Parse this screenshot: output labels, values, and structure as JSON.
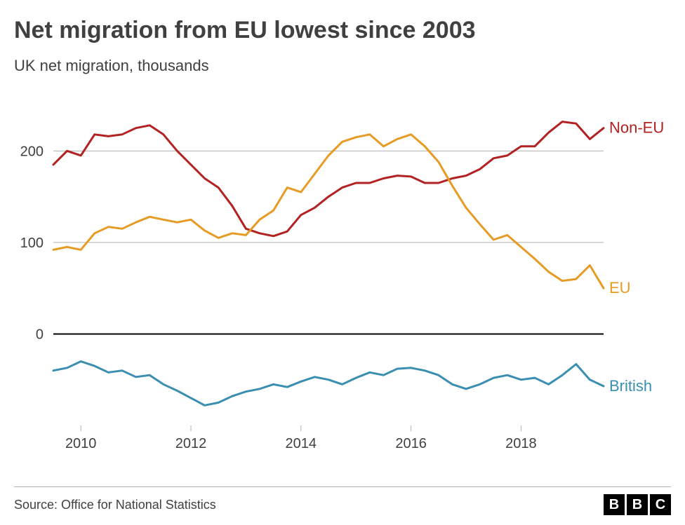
{
  "title": "Net migration from EU lowest since 2003",
  "subtitle": "UK net migration, thousands",
  "source": "Source: Office for National Statistics",
  "logo_letters": [
    "B",
    "B",
    "C"
  ],
  "chart": {
    "type": "line",
    "background_color": "#ffffff",
    "grid_color": "#b0b0b0",
    "zero_line_color": "#000000",
    "axis_text_color": "#404040",
    "line_width": 3,
    "x": {
      "min": 2009.5,
      "max": 2019.5,
      "tick_values": [
        2010,
        2012,
        2014,
        2016,
        2018
      ],
      "tick_labels": [
        "2010",
        "2012",
        "2014",
        "2016",
        "2018"
      ]
    },
    "y": {
      "min": -100,
      "max": 260,
      "tick_values": [
        0,
        100,
        200
      ],
      "tick_labels": [
        "0",
        "100",
        "200"
      ]
    },
    "series": [
      {
        "name": "Non-EU",
        "label": "Non-EU",
        "color": "#b22222",
        "points": [
          [
            2009.5,
            185
          ],
          [
            2009.75,
            200
          ],
          [
            2010,
            195
          ],
          [
            2010.25,
            218
          ],
          [
            2010.5,
            216
          ],
          [
            2010.75,
            218
          ],
          [
            2011,
            225
          ],
          [
            2011.25,
            228
          ],
          [
            2011.5,
            218
          ],
          [
            2011.75,
            200
          ],
          [
            2012,
            185
          ],
          [
            2012.25,
            170
          ],
          [
            2012.5,
            160
          ],
          [
            2012.75,
            140
          ],
          [
            2013,
            115
          ],
          [
            2013.25,
            110
          ],
          [
            2013.5,
            107
          ],
          [
            2013.75,
            112
          ],
          [
            2014,
            130
          ],
          [
            2014.25,
            138
          ],
          [
            2014.5,
            150
          ],
          [
            2014.75,
            160
          ],
          [
            2015,
            165
          ],
          [
            2015.25,
            165
          ],
          [
            2015.5,
            170
          ],
          [
            2015.75,
            173
          ],
          [
            2016,
            172
          ],
          [
            2016.25,
            165
          ],
          [
            2016.5,
            165
          ],
          [
            2016.75,
            170
          ],
          [
            2017,
            173
          ],
          [
            2017.25,
            180
          ],
          [
            2017.5,
            192
          ],
          [
            2017.75,
            195
          ],
          [
            2018,
            205
          ],
          [
            2018.25,
            205
          ],
          [
            2018.5,
            220
          ],
          [
            2018.75,
            232
          ],
          [
            2019,
            230
          ],
          [
            2019.25,
            213
          ],
          [
            2019.5,
            225
          ]
        ]
      },
      {
        "name": "EU",
        "label": "EU",
        "color": "#e69b24",
        "points": [
          [
            2009.5,
            92
          ],
          [
            2009.75,
            95
          ],
          [
            2010,
            92
          ],
          [
            2010.25,
            110
          ],
          [
            2010.5,
            117
          ],
          [
            2010.75,
            115
          ],
          [
            2011,
            122
          ],
          [
            2011.25,
            128
          ],
          [
            2011.5,
            125
          ],
          [
            2011.75,
            122
          ],
          [
            2012,
            125
          ],
          [
            2012.25,
            113
          ],
          [
            2012.5,
            105
          ],
          [
            2012.75,
            110
          ],
          [
            2013,
            108
          ],
          [
            2013.25,
            125
          ],
          [
            2013.5,
            135
          ],
          [
            2013.75,
            160
          ],
          [
            2014,
            155
          ],
          [
            2014.25,
            175
          ],
          [
            2014.5,
            195
          ],
          [
            2014.75,
            210
          ],
          [
            2015,
            215
          ],
          [
            2015.25,
            218
          ],
          [
            2015.5,
            205
          ],
          [
            2015.75,
            213
          ],
          [
            2016,
            218
          ],
          [
            2016.25,
            205
          ],
          [
            2016.5,
            188
          ],
          [
            2016.75,
            162
          ],
          [
            2017,
            138
          ],
          [
            2017.25,
            120
          ],
          [
            2017.5,
            103
          ],
          [
            2017.75,
            108
          ],
          [
            2018,
            95
          ],
          [
            2018.25,
            82
          ],
          [
            2018.5,
            68
          ],
          [
            2018.75,
            58
          ],
          [
            2019,
            60
          ],
          [
            2019.25,
            75
          ],
          [
            2019.5,
            50
          ]
        ]
      },
      {
        "name": "British",
        "label": "British",
        "color": "#3a8fb0",
        "points": [
          [
            2009.5,
            -40
          ],
          [
            2009.75,
            -37
          ],
          [
            2010,
            -30
          ],
          [
            2010.25,
            -35
          ],
          [
            2010.5,
            -42
          ],
          [
            2010.75,
            -40
          ],
          [
            2011,
            -47
          ],
          [
            2011.25,
            -45
          ],
          [
            2011.5,
            -55
          ],
          [
            2011.75,
            -62
          ],
          [
            2012,
            -70
          ],
          [
            2012.25,
            -78
          ],
          [
            2012.5,
            -75
          ],
          [
            2012.75,
            -68
          ],
          [
            2013,
            -63
          ],
          [
            2013.25,
            -60
          ],
          [
            2013.5,
            -55
          ],
          [
            2013.75,
            -58
          ],
          [
            2014,
            -52
          ],
          [
            2014.25,
            -47
          ],
          [
            2014.5,
            -50
          ],
          [
            2014.75,
            -55
          ],
          [
            2015,
            -48
          ],
          [
            2015.25,
            -42
          ],
          [
            2015.5,
            -45
          ],
          [
            2015.75,
            -38
          ],
          [
            2016,
            -37
          ],
          [
            2016.25,
            -40
          ],
          [
            2016.5,
            -45
          ],
          [
            2016.75,
            -55
          ],
          [
            2017,
            -60
          ],
          [
            2017.25,
            -55
          ],
          [
            2017.5,
            -48
          ],
          [
            2017.75,
            -45
          ],
          [
            2018,
            -50
          ],
          [
            2018.25,
            -48
          ],
          [
            2018.5,
            -55
          ],
          [
            2018.75,
            -45
          ],
          [
            2019,
            -33
          ],
          [
            2019.25,
            -50
          ],
          [
            2019.5,
            -57
          ]
        ]
      }
    ]
  }
}
